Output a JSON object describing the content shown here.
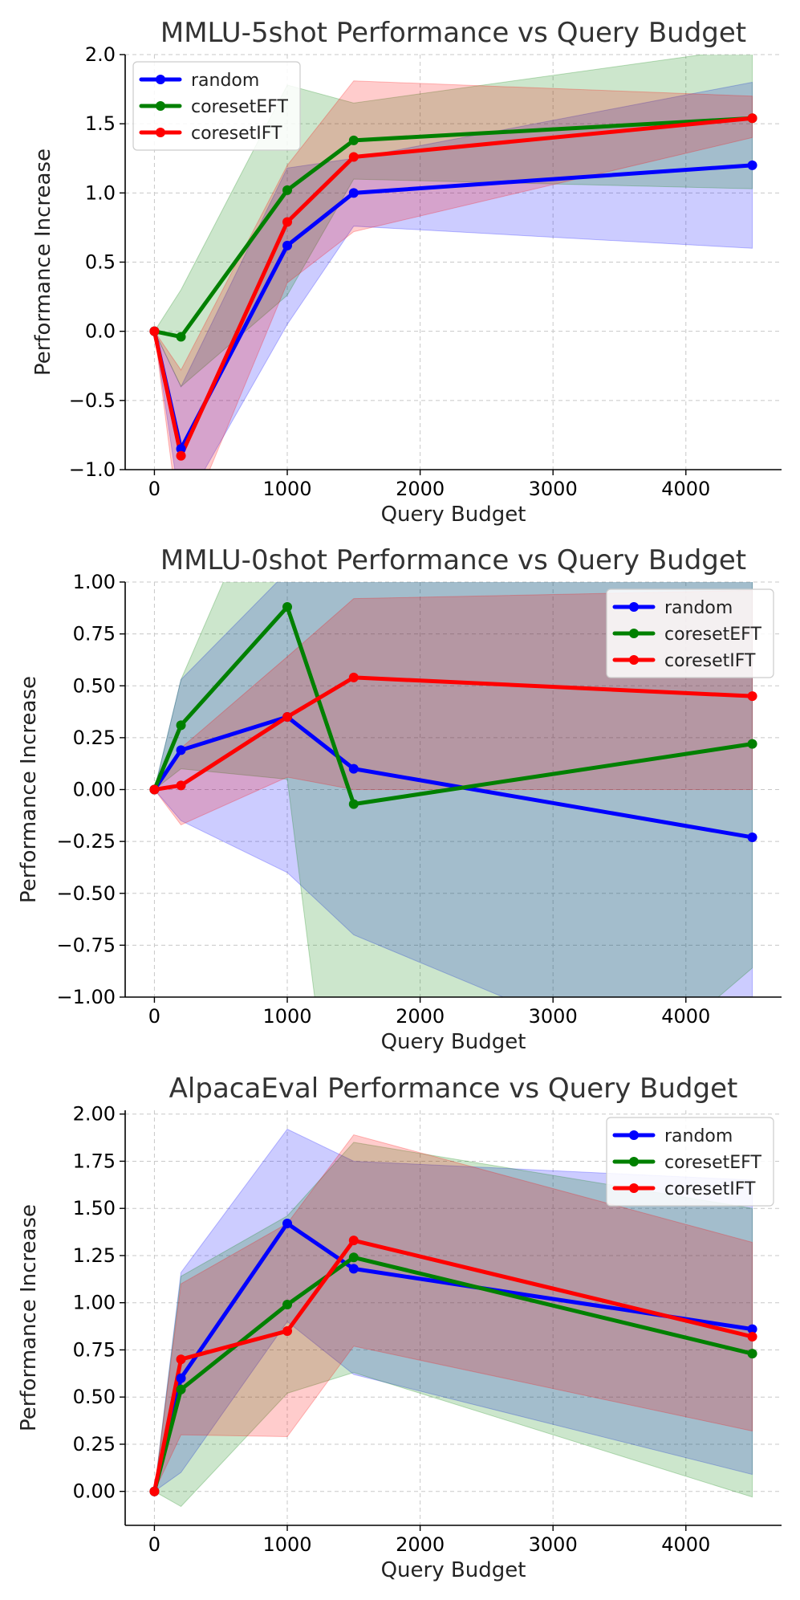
{
  "chart_data": [
    {
      "type": "line",
      "title": "MMLU-5shot Performance vs Query Budget",
      "xlabel": "Query Budget",
      "ylabel": "Performance Increase",
      "xlim": [
        -220,
        4720
      ],
      "ylim": [
        -1.0,
        2.0
      ],
      "xticks": [
        0,
        1000,
        2000,
        3000,
        4000
      ],
      "xtick_labels": [
        "0",
        "1000",
        "2000",
        "3000",
        "4000"
      ],
      "yticks": [
        -1.0,
        -0.5,
        0.0,
        0.5,
        1.0,
        1.5,
        2.0
      ],
      "ytick_labels": [
        "−1.0",
        "−0.5",
        "0.0",
        "0.5",
        "1.0",
        "1.5",
        "2.0"
      ],
      "grid": true,
      "legend_position": "top-left",
      "x": [
        0,
        200,
        1000,
        1500,
        4500
      ],
      "series": [
        {
          "name": "random",
          "color": "#0000ff",
          "values": [
            0.0,
            -0.85,
            0.62,
            1.0,
            1.2
          ],
          "band_lower": [
            0.0,
            -1.3,
            0.05,
            0.76,
            0.6
          ],
          "band_upper": [
            0.0,
            -0.4,
            1.18,
            1.25,
            1.8
          ]
        },
        {
          "name": "coresetEFT",
          "color": "#008000",
          "values": [
            0.0,
            -0.04,
            1.02,
            1.38,
            1.54
          ],
          "band_lower": [
            0.0,
            -0.4,
            0.26,
            1.1,
            1.03
          ],
          "band_upper": [
            0.0,
            0.3,
            1.78,
            1.65,
            2.05
          ]
        },
        {
          "name": "coresetIFT",
          "color": "#ff0000",
          "values": [
            0.0,
            -0.9,
            0.79,
            1.26,
            1.54
          ],
          "band_lower": [
            0.0,
            -1.5,
            0.35,
            0.72,
            1.4
          ],
          "band_upper": [
            0.0,
            -0.28,
            1.2,
            1.81,
            1.7
          ]
        }
      ]
    },
    {
      "type": "line",
      "title": "MMLU-0shot Performance vs Query Budget",
      "xlabel": "Query Budget",
      "ylabel": "Performance Increase",
      "xlim": [
        -220,
        4720
      ],
      "ylim": [
        -1.0,
        1.0
      ],
      "xticks": [
        0,
        1000,
        2000,
        3000,
        4000
      ],
      "xtick_labels": [
        "0",
        "1000",
        "2000",
        "3000",
        "4000"
      ],
      "yticks": [
        -1.0,
        -0.75,
        -0.5,
        -0.25,
        0.0,
        0.25,
        0.5,
        0.75,
        1.0
      ],
      "ytick_labels": [
        "−1.00",
        "−0.75",
        "−0.50",
        "−0.25",
        "0.00",
        "0.25",
        "0.50",
        "0.75",
        "1.00"
      ],
      "grid": true,
      "legend_position": "top-right",
      "x": [
        0,
        200,
        1000,
        1500,
        4500
      ],
      "series": [
        {
          "name": "random",
          "color": "#0000ff",
          "values": [
            0.0,
            0.19,
            0.35,
            0.1,
            -0.23
          ],
          "band_lower": [
            0.0,
            -0.15,
            -0.4,
            -0.7,
            -1.5
          ],
          "band_upper": [
            0.0,
            0.53,
            1.05,
            1.1,
            1.05
          ]
        },
        {
          "name": "coresetEFT",
          "color": "#008000",
          "values": [
            0.0,
            0.31,
            0.88,
            -0.07,
            0.22
          ],
          "band_lower": [
            0.0,
            0.1,
            0.05,
            -2.5,
            -0.86
          ],
          "band_upper": [
            0.0,
            0.53,
            1.71,
            1.3,
            1.2
          ]
        },
        {
          "name": "coresetIFT",
          "color": "#ff0000",
          "values": [
            0.0,
            0.02,
            0.35,
            0.54,
            0.45
          ],
          "band_lower": [
            0.0,
            -0.17,
            0.06,
            0.0,
            0.0
          ],
          "band_upper": [
            0.0,
            0.2,
            0.64,
            0.92,
            0.96
          ]
        }
      ]
    },
    {
      "type": "line",
      "title": "AlpacaEval Performance vs Query Budget",
      "xlabel": "Query Budget",
      "ylabel": "Performance Increase",
      "xlim": [
        -220,
        4720
      ],
      "ylim": [
        -0.18,
        2.02
      ],
      "xticks": [
        0,
        1000,
        2000,
        3000,
        4000
      ],
      "xtick_labels": [
        "0",
        "1000",
        "2000",
        "3000",
        "4000"
      ],
      "yticks": [
        0.0,
        0.25,
        0.5,
        0.75,
        1.0,
        1.25,
        1.5,
        1.75,
        2.0
      ],
      "ytick_labels": [
        "0.00",
        "0.25",
        "0.50",
        "0.75",
        "1.00",
        "1.25",
        "1.50",
        "1.75",
        "2.00"
      ],
      "grid": true,
      "legend_position": "top-right",
      "x": [
        0,
        200,
        1000,
        1500,
        4500
      ],
      "series": [
        {
          "name": "random",
          "color": "#0000ff",
          "values": [
            0.0,
            0.6,
            1.42,
            1.18,
            0.86
          ],
          "band_lower": [
            0.0,
            0.1,
            0.9,
            0.62,
            0.09
          ],
          "band_upper": [
            0.0,
            1.16,
            1.92,
            1.75,
            1.65
          ]
        },
        {
          "name": "coresetEFT",
          "color": "#008000",
          "values": [
            0.0,
            0.54,
            0.99,
            1.24,
            0.73
          ],
          "band_lower": [
            0.0,
            -0.08,
            0.52,
            0.63,
            -0.03
          ],
          "band_upper": [
            0.0,
            1.14,
            1.46,
            1.85,
            1.5
          ]
        },
        {
          "name": "coresetIFT",
          "color": "#ff0000",
          "values": [
            0.0,
            0.7,
            0.85,
            1.33,
            0.82
          ],
          "band_lower": [
            0.0,
            0.3,
            0.29,
            0.77,
            0.32
          ],
          "band_upper": [
            0.0,
            1.1,
            1.42,
            1.89,
            1.32
          ]
        }
      ]
    }
  ]
}
